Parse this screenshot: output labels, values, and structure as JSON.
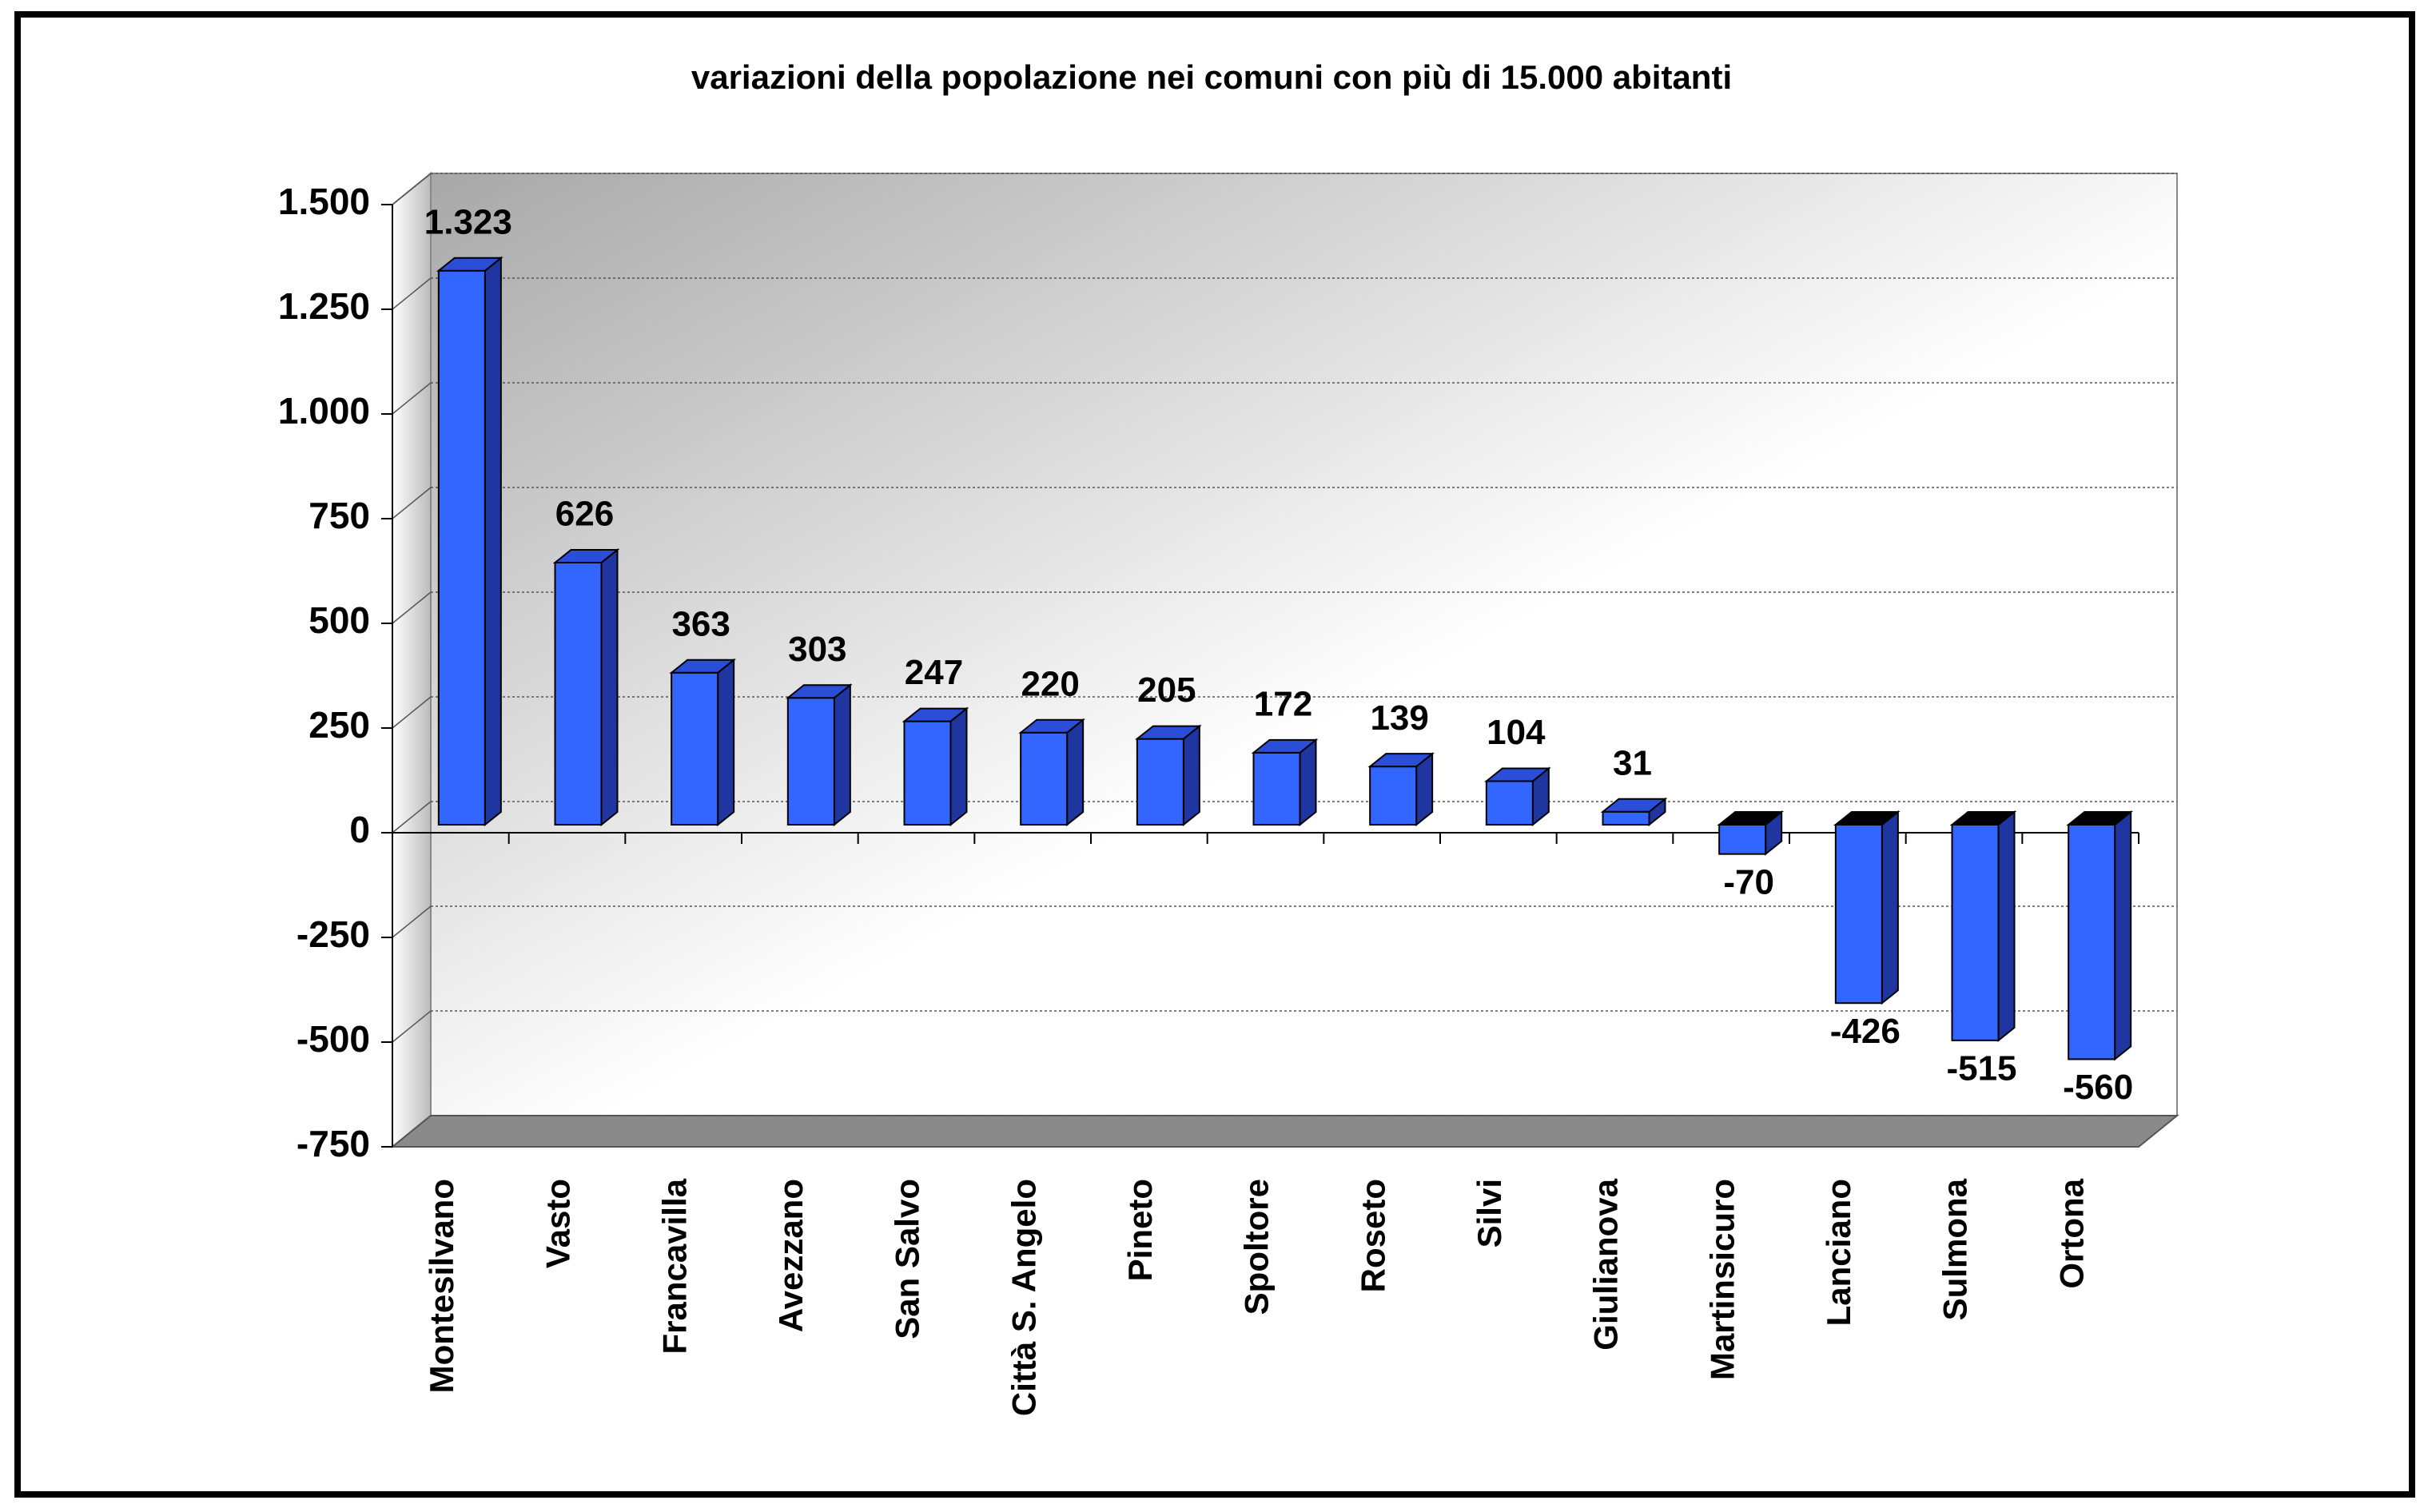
{
  "chart_data": {
    "type": "bar",
    "title": "variazioni della popolazione nei comuni con più di 15.000 abitanti",
    "categories": [
      "Montesilvano",
      "Vasto",
      "Francavilla",
      "Avezzano",
      "San Salvo",
      "Città S. Angelo",
      "Pineto",
      "Spoltore",
      "Roseto",
      "Silvi",
      "Giulianova",
      "Martinsicuro",
      "Lanciano",
      "Sulmona",
      "Ortona"
    ],
    "values": [
      1323,
      626,
      363,
      303,
      247,
      220,
      205,
      172,
      139,
      104,
      31,
      -70,
      -426,
      -515,
      -560
    ],
    "value_labels": [
      "1.323",
      "626",
      "363",
      "303",
      "247",
      "220",
      "205",
      "172",
      "139",
      "104",
      "31",
      "-70",
      "-426",
      "-515",
      "-560"
    ],
    "color": "#3366ff",
    "ylim": [
      -750,
      1500
    ],
    "yticks": [
      {
        "value": 1500,
        "label": "1.500"
      },
      {
        "value": 1250,
        "label": "1.250"
      },
      {
        "value": 1000,
        "label": "1.000"
      },
      750,
      500,
      250,
      0,
      -250,
      -500,
      -750
    ],
    "grid": true
  }
}
